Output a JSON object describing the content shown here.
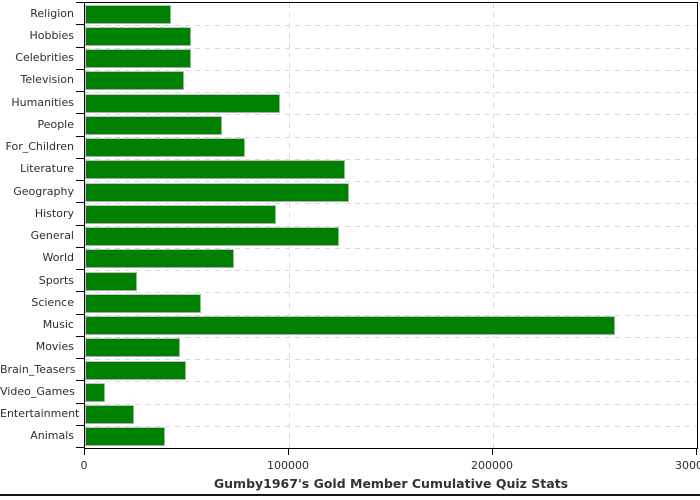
{
  "title": "Gumby1967's Gold Member Cumulative Quiz Stats",
  "colors": {
    "bar": "#008000",
    "bar_border": "#c3c3c3",
    "grid": "#d8d8d8",
    "axis": "#000000",
    "text": "#2e2e2e"
  },
  "chart_data": {
    "type": "bar",
    "orientation": "horizontal",
    "title": "Gumby1967's Gold Member Cumulative Quiz Stats",
    "xlabel": "",
    "ylabel": "",
    "xlim": [
      0,
      300000
    ],
    "xticks": [
      0,
      100000,
      200000,
      300000
    ],
    "xtick_labels": [
      "0",
      "100000",
      "200000",
      "300000"
    ],
    "grid": true,
    "legend": false,
    "categories": [
      "Religion",
      "Hobbies",
      "Celebrities",
      "Television",
      "Humanities",
      "People",
      "For_Children",
      "Literature",
      "Geography",
      "History",
      "General",
      "World",
      "Sports",
      "Science",
      "Music",
      "Movies",
      "Brain_Teasers",
      "Video_Games",
      "Entertainment",
      "Animals"
    ],
    "values": [
      42000,
      52000,
      52000,
      48500,
      95500,
      67000,
      78500,
      127500,
      129500,
      93500,
      124500,
      73000,
      25500,
      57000,
      260000,
      46500,
      49500,
      10000,
      24000,
      39000
    ]
  }
}
